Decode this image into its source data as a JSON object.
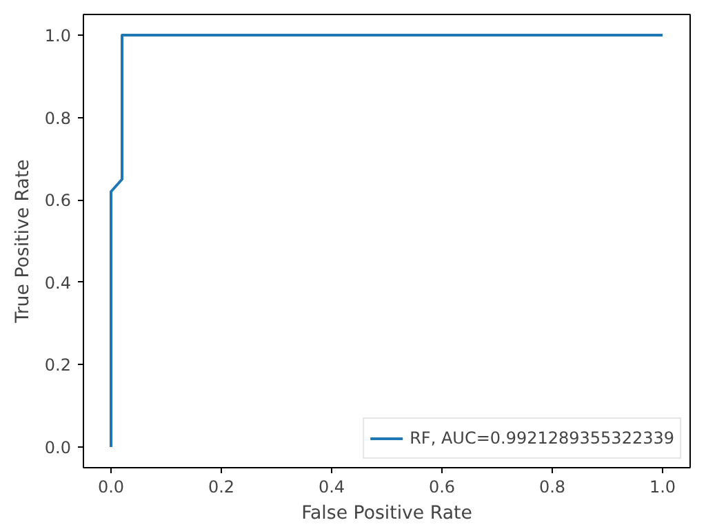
{
  "chart_data": {
    "type": "line",
    "xlabel": "False Positive Rate",
    "ylabel": "True Positive Rate",
    "x": [
      0,
      0,
      0.02,
      0.02,
      1
    ],
    "series": [
      {
        "name": "RF, AUC=0.9921289355322339",
        "color": "#1f77b4",
        "values": [
          0,
          0.62,
          0.65,
          1,
          1
        ]
      }
    ],
    "xlim": [
      -0.05,
      1.05
    ],
    "ylim": [
      -0.05,
      1.05
    ],
    "xticks": [
      {
        "value": 0,
        "label": "0.0"
      },
      {
        "value": 0.2,
        "label": "0.2"
      },
      {
        "value": 0.4,
        "label": "0.4"
      },
      {
        "value": 0.6,
        "label": "0.6"
      },
      {
        "value": 0.8,
        "label": "0.8"
      },
      {
        "value": 1,
        "label": "1.0"
      }
    ],
    "yticks": [
      {
        "value": 0,
        "label": "0.0"
      },
      {
        "value": 0.2,
        "label": "0.2"
      },
      {
        "value": 0.4,
        "label": "0.4"
      },
      {
        "value": 0.6,
        "label": "0.6"
      },
      {
        "value": 0.8,
        "label": "0.8"
      },
      {
        "value": 1,
        "label": "1.0"
      }
    ],
    "grid": false,
    "legend": "bottom right"
  }
}
